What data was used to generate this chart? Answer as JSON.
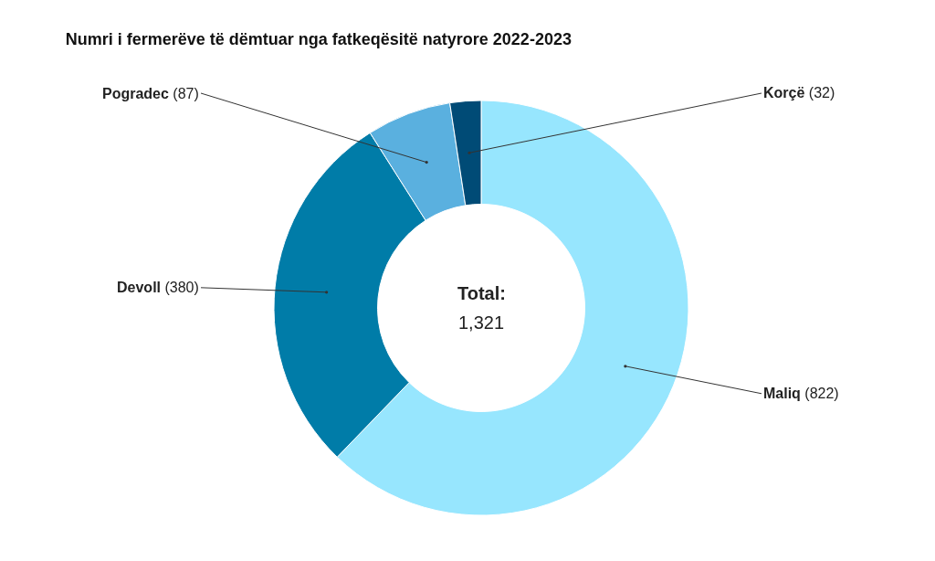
{
  "chart_data": {
    "type": "donut",
    "title": "Numri i fermerëve të dëmtuar nga fatkeqësitë natyrore 2022-2023",
    "categories": [
      "Maliq",
      "Devoll",
      "Pogradec",
      "Korçë"
    ],
    "values": [
      822,
      380,
      87,
      32
    ],
    "colors": [
      "#97e6fe",
      "#007ca8",
      "#5ab0df",
      "#004b76"
    ],
    "value_labels": [
      "(822)",
      "(380)",
      "(87)",
      "(32)"
    ],
    "annotations": [
      "Total:",
      "1,321"
    ],
    "legend": false
  }
}
